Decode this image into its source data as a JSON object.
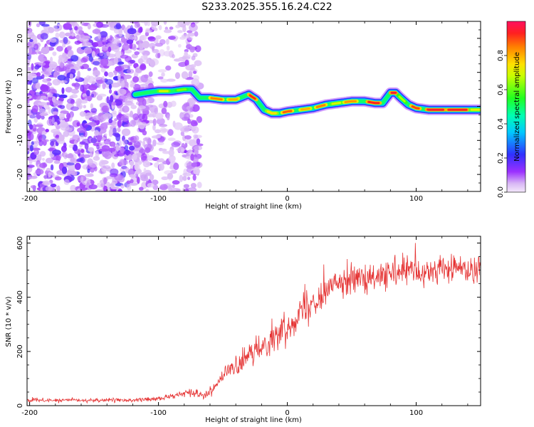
{
  "title": "S233.2025.355.16.24.C22",
  "colors": {
    "snr_line": "#e53333",
    "noise": "#8a2be2",
    "background": "#ffffff"
  },
  "chart_data": [
    {
      "type": "heatmap",
      "xlabel": "Height of straight line (km)",
      "ylabel": "Frequency (Hz)",
      "xlim": [
        -202,
        150
      ],
      "ylim": [
        -25,
        25
      ],
      "xticks": [
        -200,
        -100,
        0,
        100
      ],
      "xtick_labels": [
        "-200",
        "-100",
        "0",
        "100"
      ],
      "yticks": [
        -20,
        -10,
        0,
        10,
        20
      ],
      "ytick_labels": [
        "-20",
        "-10",
        "0",
        "10",
        "20"
      ],
      "colorbar": {
        "label": "Normalized spectral amplitude",
        "ticks": [
          0.0,
          0.2,
          0.4,
          0.6,
          0.8
        ],
        "tick_labels": [
          "0.0",
          "0.2",
          "0.4",
          "0.6",
          "0.8"
        ],
        "colormap": "rainbow (purple to red)"
      },
      "ridge": {
        "description": "Frequency ridge of maximum amplitude versus height",
        "x": [
          -118,
          -110,
          -100,
          -90,
          -80,
          -74,
          -68,
          -60,
          -50,
          -40,
          -30,
          -24,
          -18,
          -12,
          -6,
          0,
          10,
          20,
          30,
          40,
          50,
          60,
          68,
          74,
          80,
          84,
          88,
          94,
          100,
          110,
          120,
          130,
          140,
          150
        ],
        "y": [
          3.5,
          4.0,
          4.5,
          4.5,
          5.0,
          5.0,
          2.5,
          2.5,
          2.0,
          2.0,
          3.5,
          2.0,
          -1.0,
          -2.0,
          -2.0,
          -1.5,
          -1.0,
          -0.5,
          0.5,
          1.0,
          1.5,
          1.5,
          1.0,
          1.0,
          4.0,
          4.0,
          2.5,
          0.5,
          -0.5,
          -1.0,
          -1.0,
          -1.0,
          -1.0,
          -1.0
        ]
      },
      "grid": false
    },
    {
      "type": "line",
      "xlabel": "Height of straight line (km)",
      "ylabel": "SNR (10 * v/v)",
      "xlim": [
        -202,
        150
      ],
      "ylim": [
        0,
        625
      ],
      "xticks": [
        -200,
        -100,
        0,
        100
      ],
      "xtick_labels": [
        "-200",
        "-100",
        "0",
        "100"
      ],
      "yticks": [
        0,
        200,
        400,
        600
      ],
      "ytick_labels": [
        "0",
        "200",
        "400",
        "600"
      ],
      "series": [
        {
          "x": [
            -200,
            -180,
            -160,
            -140,
            -120,
            -100,
            -90,
            -80,
            -75,
            -70,
            -65,
            -60,
            -55,
            -50,
            -45,
            -40,
            -35,
            -30,
            -25,
            -20,
            -15,
            -10,
            -5,
            0,
            5,
            10,
            15,
            20,
            25,
            30,
            35,
            40,
            45,
            50,
            55,
            60,
            65,
            70,
            75,
            80,
            85,
            90,
            95,
            100,
            105,
            110,
            115,
            120,
            125,
            130,
            135,
            140,
            145,
            150
          ],
          "y": [
            20,
            20,
            20,
            20,
            20,
            25,
            35,
            45,
            50,
            45,
            40,
            50,
            80,
            110,
            130,
            140,
            160,
            180,
            200,
            220,
            240,
            250,
            270,
            290,
            320,
            350,
            370,
            390,
            400,
            420,
            440,
            460,
            470,
            470,
            470,
            460,
            460,
            470,
            480,
            480,
            490,
            490,
            500,
            490,
            480,
            490,
            500,
            510,
            500,
            510,
            510,
            500,
            505,
            510
          ],
          "noise_amplitude": [
            8,
            8,
            8,
            8,
            8,
            10,
            10,
            12,
            15,
            15,
            15,
            20,
            25,
            30,
            35,
            40,
            40,
            45,
            50,
            55,
            55,
            60,
            60,
            60,
            60,
            60,
            60,
            60,
            60,
            60,
            60,
            60,
            60,
            60,
            60,
            60,
            60,
            60,
            60,
            60,
            60,
            60,
            60,
            60,
            60,
            60,
            60,
            60,
            60,
            60,
            60,
            60,
            60,
            60
          ]
        }
      ],
      "grid": false
    }
  ]
}
